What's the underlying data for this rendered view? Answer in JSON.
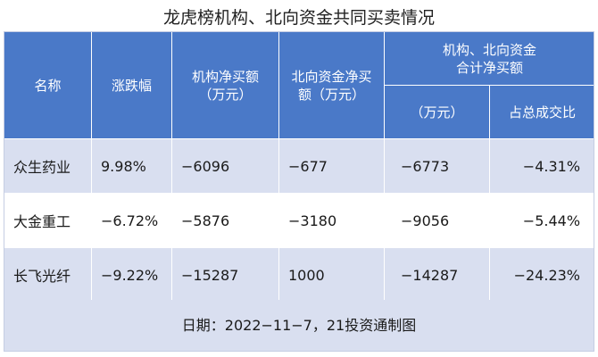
{
  "title": "龙虎榜机构、北向资金共同买卖情况",
  "headers": {
    "name": "名称",
    "change": "涨跌幅",
    "inst_line1": "机构净买额",
    "inst_line2": "（万元）",
    "north_line1": "北向资金净买",
    "north_line2": "额（万元）",
    "combined_group_line1": "机构、北向资金",
    "combined_group_line2": "合计净买额",
    "combined_unit": "（万元）",
    "share": "占总成交比"
  },
  "rows": [
    {
      "name": "众生药业",
      "change": "9.98%",
      "inst": "−6096",
      "north": "−677",
      "combined": "−6773",
      "share": "−4.31%"
    },
    {
      "name": "大金重工",
      "change": "−6.72%",
      "inst": "−5876",
      "north": "−3180",
      "combined": "−9056",
      "share": "−5.44%"
    },
    {
      "name": "长飞光纤",
      "change": "−9.22%",
      "inst": "−15287",
      "north": "1000",
      "combined": "−14287",
      "share": "−24.23%"
    }
  ],
  "footer": "日期：2022−11−7，21投资通制图",
  "colors": {
    "header": "#4a79c8",
    "band": "#d9dff0"
  }
}
